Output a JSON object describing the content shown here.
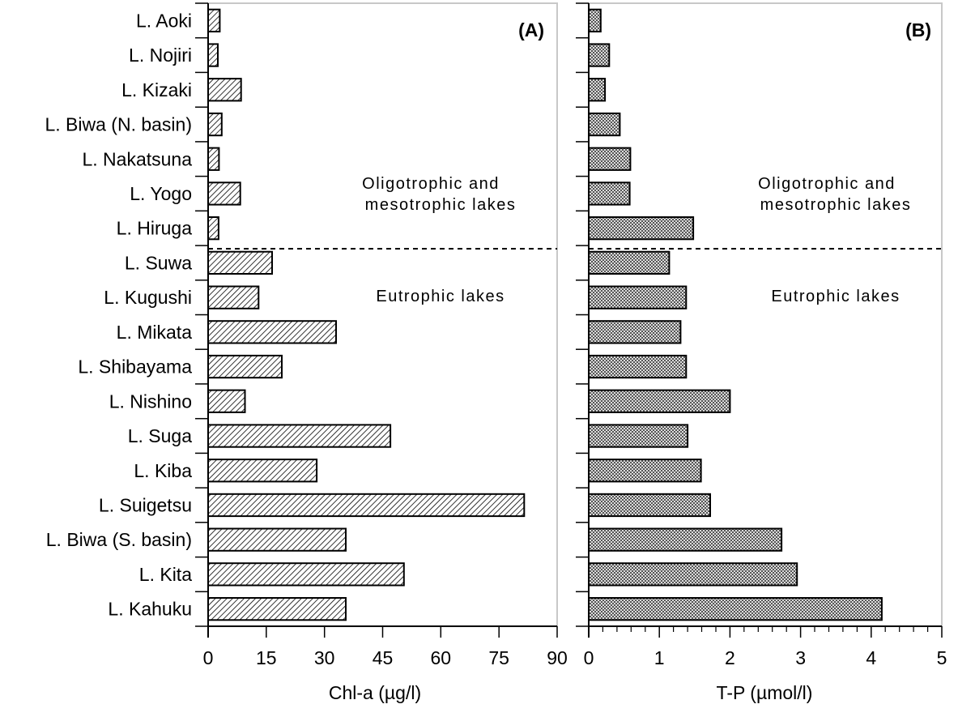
{
  "chart_data": [
    {
      "type": "bar",
      "orientation": "horizontal",
      "panel_label": "(A)",
      "xlabel": "Chl-a (µg/l)",
      "xlim": [
        0,
        90
      ],
      "xticks": [
        "0",
        "15",
        "30",
        "45",
        "60",
        "75",
        "90"
      ],
      "categories": [
        "L. Aoki",
        "L. Nojiri",
        "L. Kizaki",
        "L. Biwa (N. basin)",
        "L. Nakatsuna",
        "L. Yogo",
        "L. Hiruga",
        "L. Suwa",
        "L. Kugushi",
        "L. Mikata",
        "L. Shibayama",
        "L. Nishino",
        "L. Suga",
        "L. Kiba",
        "L. Suigetsu",
        "L. Biwa (S. basin)",
        "L. Kita",
        "L. Kahuku"
      ],
      "values": [
        3,
        2.5,
        8.5,
        3.5,
        2.8,
        8.3,
        2.7,
        16.5,
        13,
        33,
        19,
        9.5,
        47,
        28,
        81.5,
        35.5,
        50.5,
        35.5
      ],
      "annotations": [
        "Oligotrophic and",
        "mesotrophic lakes",
        "Eutrophic lakes"
      ],
      "fill": "diagonal-hatch",
      "color": "#000000"
    },
    {
      "type": "bar",
      "orientation": "horizontal",
      "panel_label": "(B)",
      "xlabel": "T-P (µmol/l)",
      "xlim": [
        0,
        5
      ],
      "xticks": [
        "0",
        "1",
        "2",
        "3",
        "4",
        "5"
      ],
      "categories": [
        "L. Aoki",
        "L. Nojiri",
        "L. Kizaki",
        "L. Biwa (N. basin)",
        "L. Nakatsuna",
        "L. Yogo",
        "L. Hiruga",
        "L. Suwa",
        "L. Kugushi",
        "L. Mikata",
        "L. Shibayama",
        "L. Nishino",
        "L. Suga",
        "L. Kiba",
        "L. Suigetsu",
        "L. Biwa (S. basin)",
        "L. Kita",
        "L. Kahuku"
      ],
      "values": [
        0.17,
        0.29,
        0.23,
        0.44,
        0.59,
        0.58,
        1.48,
        1.14,
        1.38,
        1.3,
        1.38,
        2.0,
        1.4,
        1.59,
        1.72,
        2.73,
        2.95,
        4.15
      ],
      "annotations": [
        "Oligotrophic and",
        "mesotrophic lakes",
        "Eutrophic lakes"
      ],
      "fill": "crosshatch",
      "color": "#000000"
    }
  ]
}
